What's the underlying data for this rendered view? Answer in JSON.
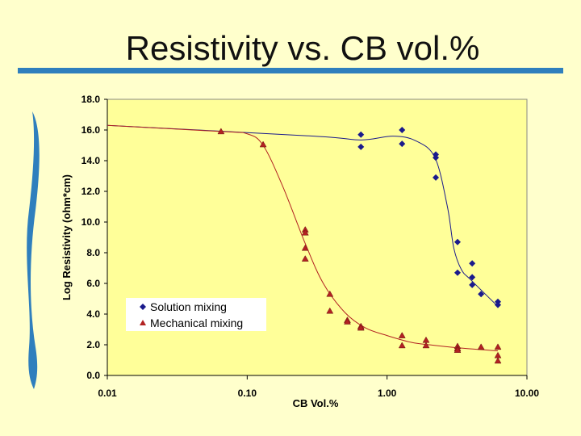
{
  "slide": {
    "title": "Resistivity vs. CB vol.%"
  },
  "chart_data": {
    "type": "scatter",
    "title": "",
    "xlabel": "CB Vol.%",
    "ylabel": "Log Resistivity (ohm*cm)",
    "xscale": "log",
    "xlim": [
      0.01,
      10
    ],
    "ylim": [
      0,
      18
    ],
    "xticks": [
      "0.01",
      "0.10",
      "1.00",
      "10.00"
    ],
    "yticks": [
      "0.0",
      "2.0",
      "4.0",
      "6.0",
      "8.0",
      "10.0",
      "12.0",
      "14.0",
      "16.0",
      "18.0"
    ],
    "grid": false,
    "legend": "bottom-left",
    "plot_background": "#ffff99",
    "series": [
      {
        "name": "Solution mixing",
        "marker": "diamond",
        "color": "#1a1a8c",
        "x": [
          0.65,
          0.65,
          1.28,
          1.28,
          2.23,
          2.23,
          2.23,
          3.19,
          3.19,
          4.06,
          4.06,
          4.06,
          4.7,
          6.2,
          6.2
        ],
        "y": [
          15.7,
          14.9,
          16.0,
          15.1,
          14.4,
          14.2,
          12.9,
          8.7,
          6.7,
          7.3,
          6.4,
          5.9,
          5.3,
          4.8,
          4.6
        ],
        "trend": {
          "x": [
            0.01,
            0.3,
            0.65,
            1.1,
            1.6,
            2.2,
            2.7,
            3.0,
            3.4,
            4.0,
            6.2
          ],
          "y": [
            16.3,
            15.6,
            15.35,
            15.6,
            15.3,
            14.2,
            11.0,
            8.3,
            6.9,
            6.2,
            4.5
          ]
        }
      },
      {
        "name": "Mechanical mixing",
        "marker": "triangle",
        "color": "#b22222",
        "x": [
          0.065,
          0.13,
          0.26,
          0.26,
          0.26,
          0.26,
          0.39,
          0.39,
          0.52,
          0.52,
          0.65,
          0.65,
          1.28,
          1.28,
          1.9,
          1.9,
          3.19,
          3.19,
          3.19,
          4.7,
          6.2,
          6.2,
          6.2
        ],
        "y": [
          15.9,
          15.05,
          9.5,
          9.3,
          8.3,
          7.6,
          5.3,
          4.2,
          3.6,
          3.5,
          3.2,
          3.1,
          2.6,
          1.95,
          2.3,
          1.95,
          1.9,
          1.75,
          1.65,
          1.85,
          1.85,
          1.3,
          0.95
        ],
        "trend": {
          "x": [
            0.01,
            0.065,
            0.1,
            0.13,
            0.18,
            0.26,
            0.35,
            0.5,
            0.7,
            1.0,
            1.5,
            2.0,
            3.2,
            6.2
          ],
          "y": [
            16.3,
            15.9,
            15.75,
            15.0,
            12.3,
            8.6,
            6.0,
            4.1,
            3.1,
            2.6,
            2.15,
            2.0,
            1.8,
            1.6
          ]
        }
      }
    ]
  }
}
